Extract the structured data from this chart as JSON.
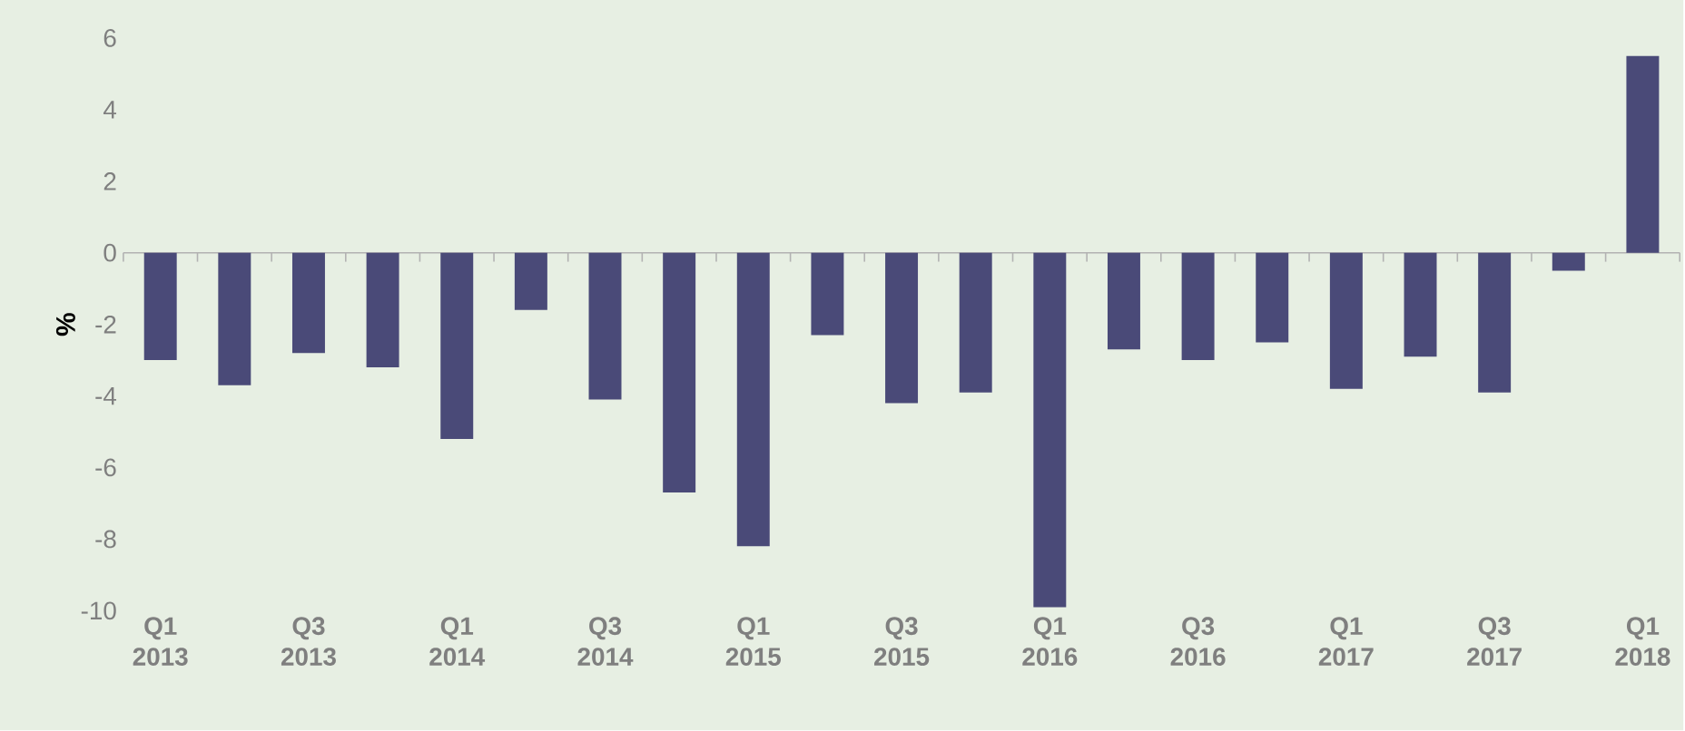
{
  "chart_data": {
    "type": "bar",
    "ylabel": "%",
    "categories": [
      "Q1 2013",
      null,
      "Q3 2013",
      null,
      "Q1 2014",
      null,
      "Q3 2014",
      null,
      "Q1 2015",
      null,
      "Q3 2015",
      null,
      "Q1 2016",
      null,
      "Q3 2016",
      null,
      "Q1 2017",
      null,
      "Q3 2017",
      null,
      "Q1 2018"
    ],
    "values": [
      -3.0,
      -3.7,
      -2.8,
      -3.2,
      -5.2,
      -1.6,
      -4.1,
      -6.7,
      -8.2,
      -2.3,
      -4.2,
      -3.9,
      -9.9,
      -2.7,
      -3.0,
      -2.5,
      -3.8,
      -2.9,
      -3.9,
      -0.5,
      5.5
    ],
    "color": "#4a4a78",
    "ylim": [
      -10,
      6
    ],
    "yticks": [
      -10,
      -8,
      -6,
      -4,
      -2,
      0,
      2,
      4,
      6
    ]
  }
}
